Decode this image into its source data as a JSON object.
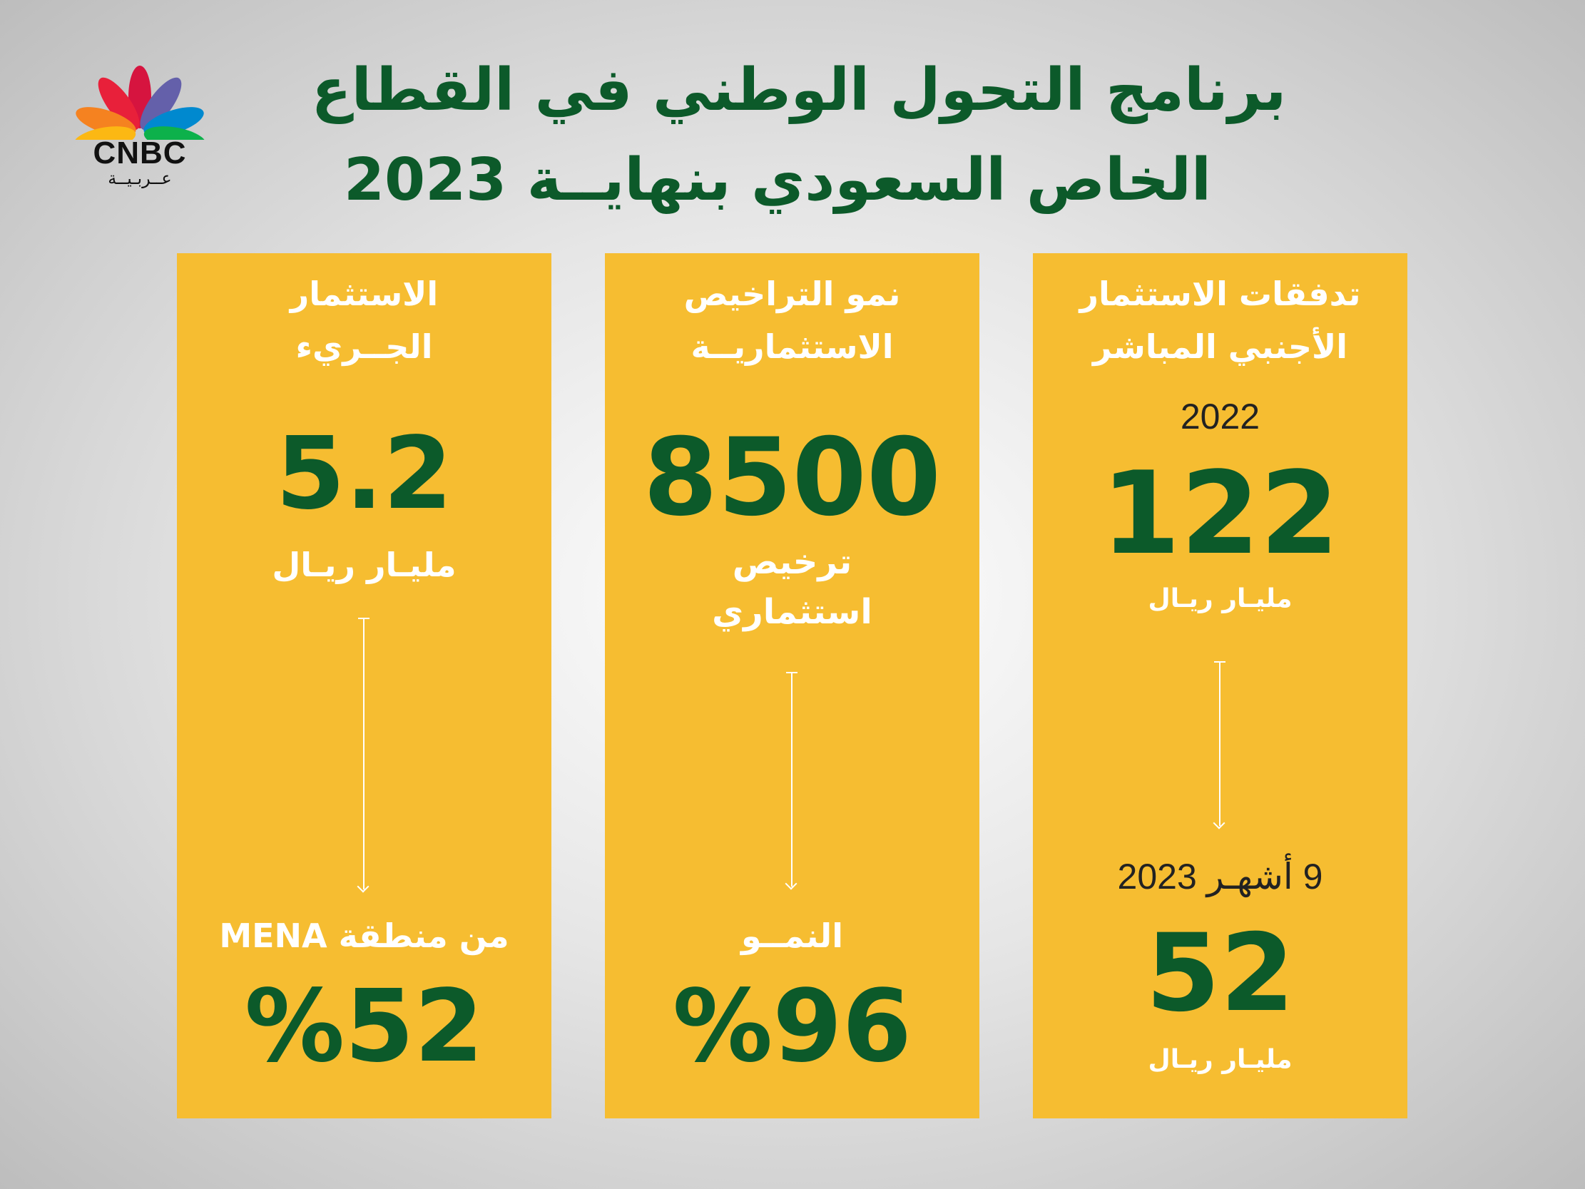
{
  "header": {
    "title_line1": "برنامج التحول الوطني في القطاع",
    "title_line2": "الخاص السعودي بنهايــة 2023",
    "logo_text": "CNBC",
    "logo_sub": "عــربـيــة"
  },
  "cards": {
    "right": {
      "heading_1": "تدفقات الاستثمار",
      "heading_2": "الأجنبي المباشر",
      "year_1": "2022",
      "value_1": "122",
      "unit_1": "مليـار ريـال",
      "year_2": "9 أشهـر 2023",
      "value_2": "52",
      "unit_2": "مليـار ريـال"
    },
    "middle": {
      "heading_1": "نمو التراخيص",
      "heading_2": "الاستثماريــة",
      "value_1": "8500",
      "unit_1": "ترخيص",
      "unit_2": "استثماري",
      "label_2": "النمــو",
      "value_2": "%96"
    },
    "left": {
      "heading_1": "الاستثمار",
      "heading_2": "الجــريء",
      "value_1": "5.2",
      "unit_1": "مليـار ريـال",
      "label_2": "من منطقة MENA",
      "value_2": "%52"
    }
  },
  "colors": {
    "card": "#f6bd31",
    "accent_green": "#0c5a2a",
    "text_white": "#ffffff"
  }
}
